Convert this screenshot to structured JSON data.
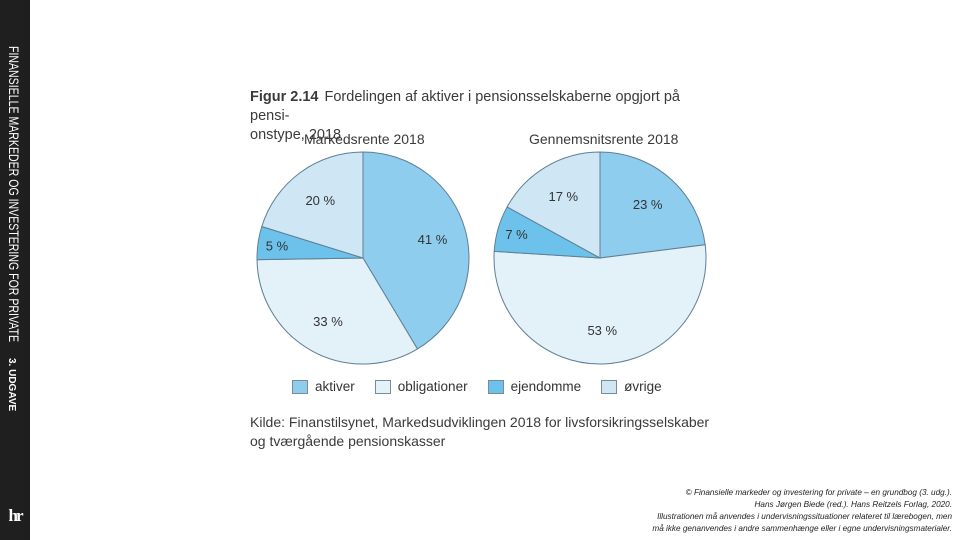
{
  "sidebar": {
    "title": "FINANSIELLE MARKEDER OG INVESTERING FOR PRIVATE",
    "edition": "3. UDGAVE",
    "logo": "hr"
  },
  "figure": {
    "label": "Figur 2.14",
    "title": "Fordelingen af aktiver i pensionsselskaberne opgjort på pensi-onstype, 2018",
    "title_line1": "Fordelingen af aktiver i pensionsselskaberne opgjort på pensi-",
    "title_line2": "onstype, 2018",
    "source_line1": "Kilde: Finanstilsynet, Markedsudviklingen 2018 for livsforsikringsselskaber",
    "source_line2": "og tværgående pensionskasser"
  },
  "colors": {
    "aktiver": "#8fcdee",
    "obligationer": "#e3f1f9",
    "ejendomme": "#6cc2ea",
    "ovrige": "#cfe6f5",
    "stroke": "#5f7f94"
  },
  "chart_data": [
    {
      "type": "pie",
      "title": "Markedsrente 2018",
      "labels": [
        "aktiver",
        "obligationer",
        "ejendomme",
        "øvrige"
      ],
      "values": [
        41,
        33,
        5,
        20
      ],
      "value_labels": [
        "41 %",
        "33 %",
        "5 %",
        "20 %"
      ]
    },
    {
      "type": "pie",
      "title": "Gennemsnitsrente 2018",
      "labels": [
        "aktiver",
        "obligationer",
        "ejendomme",
        "øvrige"
      ],
      "values": [
        23,
        53,
        7,
        17
      ],
      "value_labels": [
        "23 %",
        "53 %",
        "7 %",
        "17 %"
      ]
    }
  ],
  "legend": [
    {
      "label": "aktiver",
      "color_key": "aktiver"
    },
    {
      "label": "obligationer",
      "color_key": "obligationer"
    },
    {
      "label": "ejendomme",
      "color_key": "ejendomme"
    },
    {
      "label": "øvrige",
      "color_key": "ovrige"
    }
  ],
  "copyright": {
    "line1": "© Finansielle markeder og investering for private – en grundbog (3. udg.).",
    "line2": "Hans Jørgen Biede (red.). Hans Reitzels Forlag, 2020.",
    "line3": "Illustrationen må anvendes i undervisningssituationer relateret til lærebogen, men",
    "line4": "må ikke genanvendes i andre sammenhænge eller i egne undervisningsmaterialer."
  }
}
